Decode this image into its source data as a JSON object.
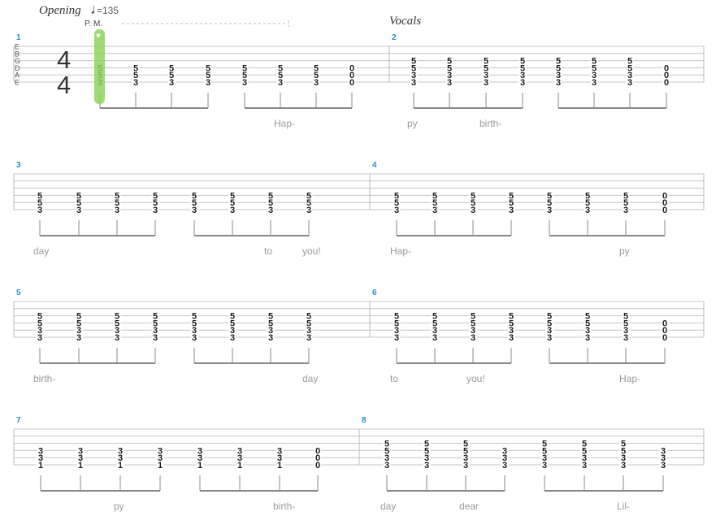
{
  "header": {
    "section": "Opening",
    "tempo": "=135",
    "vocals": "Vocals",
    "palm_mute": "P. M.",
    "strings": [
      "E",
      "B",
      "G",
      "D",
      "A",
      "E"
    ],
    "time_signature": [
      "4",
      "4"
    ]
  },
  "measures": [
    {
      "number": "1",
      "chords": [
        [
          "5",
          "5",
          "3"
        ],
        [
          "5",
          "5",
          "3"
        ],
        [
          "5",
          "5",
          "3"
        ],
        [
          "5",
          "5",
          "3"
        ],
        [
          "5",
          "5",
          "3"
        ],
        [
          "5",
          "5",
          "3"
        ],
        [
          "5",
          "5",
          "3"
        ],
        [
          "0",
          "0",
          "0"
        ]
      ],
      "lyrics": [
        "",
        "",
        "",
        "",
        "",
        "Hap-",
        "",
        ""
      ]
    },
    {
      "number": "2",
      "chords": [
        [
          "5",
          "5",
          "3",
          "3"
        ],
        [
          "5",
          "5",
          "3",
          "3"
        ],
        [
          "5",
          "5",
          "3",
          "3"
        ],
        [
          "5",
          "5",
          "3",
          "3"
        ],
        [
          "5",
          "5",
          "3",
          "3"
        ],
        [
          "5",
          "5",
          "3",
          "3"
        ],
        [
          "5",
          "5",
          "3",
          "3"
        ],
        [
          "0",
          "0",
          "0"
        ]
      ],
      "lyrics": [
        "py",
        "",
        "birth-",
        "",
        "",
        "",
        "",
        ""
      ]
    },
    {
      "number": "3",
      "chords": [
        [
          "5",
          "5",
          "3"
        ],
        [
          "5",
          "5",
          "3"
        ],
        [
          "5",
          "5",
          "3"
        ],
        [
          "5",
          "5",
          "3"
        ],
        [
          "5",
          "5",
          "3"
        ],
        [
          "5",
          "5",
          "3"
        ],
        [
          "5",
          "5",
          "3"
        ],
        [
          "5",
          "5",
          "3"
        ]
      ],
      "lyrics": [
        "day",
        "",
        "",
        "",
        "",
        "",
        "to",
        "you!"
      ]
    },
    {
      "number": "4",
      "chords": [
        [
          "5",
          "5",
          "3"
        ],
        [
          "5",
          "5",
          "3"
        ],
        [
          "5",
          "5",
          "3"
        ],
        [
          "5",
          "5",
          "3"
        ],
        [
          "5",
          "5",
          "3"
        ],
        [
          "5",
          "5",
          "3"
        ],
        [
          "5",
          "5",
          "3"
        ],
        [
          "0",
          "0",
          "0"
        ]
      ],
      "lyrics": [
        "Hap-",
        "",
        "",
        "",
        "",
        "",
        "py",
        ""
      ]
    },
    {
      "number": "5",
      "chords": [
        [
          "5",
          "5",
          "3",
          "3"
        ],
        [
          "5",
          "5",
          "3",
          "3"
        ],
        [
          "5",
          "5",
          "3",
          "3"
        ],
        [
          "5",
          "5",
          "3",
          "3"
        ],
        [
          "5",
          "5",
          "3",
          "3"
        ],
        [
          "5",
          "5",
          "3",
          "3"
        ],
        [
          "5",
          "5",
          "3",
          "3"
        ],
        [
          "5",
          "5",
          "3",
          "3"
        ]
      ],
      "lyrics": [
        "birth-",
        "",
        "",
        "",
        "",
        "",
        "",
        "day"
      ]
    },
    {
      "number": "6",
      "chords": [
        [
          "5",
          "5",
          "3",
          "3"
        ],
        [
          "5",
          "5",
          "3",
          "3"
        ],
        [
          "5",
          "5",
          "3",
          "3"
        ],
        [
          "5",
          "5",
          "3",
          "3"
        ],
        [
          "5",
          "5",
          "3",
          "3"
        ],
        [
          "5",
          "5",
          "3",
          "3"
        ],
        [
          "5",
          "5",
          "3",
          "3"
        ],
        [
          "0",
          "0",
          "0"
        ]
      ],
      "lyrics": [
        "to",
        "",
        "you!",
        "",
        "",
        "",
        "Hap-",
        ""
      ]
    },
    {
      "number": "7",
      "chords": [
        [
          "3",
          "3",
          "1"
        ],
        [
          "3",
          "3",
          "1"
        ],
        [
          "3",
          "3",
          "1"
        ],
        [
          "3",
          "3",
          "1"
        ],
        [
          "3",
          "3",
          "1"
        ],
        [
          "3",
          "3",
          "1"
        ],
        [
          "3",
          "3",
          "1"
        ],
        [
          "0",
          "0",
          "0"
        ]
      ],
      "lyrics": [
        "",
        "",
        "py",
        "",
        "",
        "",
        "birth-",
        ""
      ]
    },
    {
      "number": "8",
      "chords": [
        [
          "5",
          "5",
          "3",
          "3"
        ],
        [
          "5",
          "5",
          "3",
          "3"
        ],
        [
          "5",
          "5",
          "3",
          "3"
        ],
        [
          "3",
          "3",
          "3"
        ],
        [
          "5",
          "5",
          "3",
          "3"
        ],
        [
          "5",
          "5",
          "3",
          "3"
        ],
        [
          "5",
          "5",
          "3",
          "3"
        ],
        [
          "3",
          "3",
          "3"
        ]
      ],
      "lyrics": [
        "day",
        "",
        "dear",
        "",
        "",
        "",
        "Lil-",
        ""
      ]
    }
  ],
  "colors": {
    "measure_number": "#2a8fc4",
    "cursor": "#8fd45a",
    "lyric": "#9a9a9a"
  }
}
